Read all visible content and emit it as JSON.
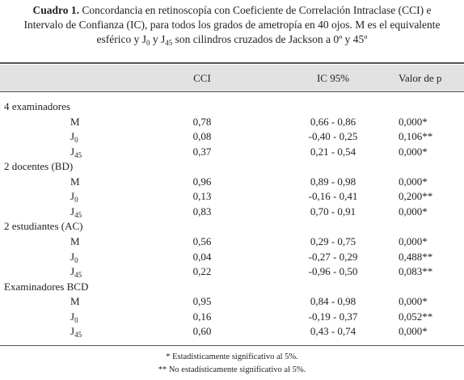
{
  "caption": {
    "label": "Cuadro 1.",
    "line_1": " Concordancia en retinoscopía con Coeficiente de Correlación Intraclase (CCI) e",
    "line_2": "Intervalo de Confianza (IC), para todos los grados de ametropía en 40 ojos. M es el equivalente",
    "line_3a": "esférico y J",
    "sub_1": "0",
    "line_3b": " y J",
    "sub_2": "45",
    "line_3c": " son cilindros cruzados de Jackson a 0º y 45º"
  },
  "table": {
    "header": [
      "CCI",
      "IC 95%",
      "Valor de p"
    ],
    "groups": [
      {
        "name": "4 examinadores",
        "rows": [
          {
            "label": "M",
            "cells": [
              "0,78",
              "0,66 - 0,86",
              "0,000*"
            ]
          },
          {
            "label": "J",
            "sub": "0",
            "cells": [
              "0,08",
              "-0,40 - 0,25",
              "0,106**"
            ]
          },
          {
            "label": "J",
            "sub": "45",
            "cells": [
              "0,37",
              "0,21 - 0,54",
              "0,000*"
            ]
          }
        ]
      },
      {
        "name": "2 docentes (BD)",
        "rows": [
          {
            "label": "M",
            "cells": [
              "0,96",
              "0,89 - 0,98",
              "0,000*"
            ]
          },
          {
            "label": "J",
            "sub": "0",
            "cells": [
              "0,13",
              "-0,16 - 0,41",
              "0,200**"
            ]
          },
          {
            "label": "J",
            "sub": "45",
            "cells": [
              "0,83",
              "0,70 - 0,91",
              "0,000*"
            ]
          }
        ]
      },
      {
        "name": "2 estudiantes (AC)",
        "rows": [
          {
            "label": "M",
            "cells": [
              "0,56",
              "0,29 - 0,75",
              "0,000*"
            ]
          },
          {
            "label": "J",
            "sub": "0",
            "cells": [
              "0,04",
              "-0,27 - 0,29",
              "0,488**"
            ]
          },
          {
            "label": "J",
            "sub": "45",
            "cells": [
              "0,22",
              "-0,96 - 0,50",
              "0,083**"
            ]
          }
        ]
      },
      {
        "name": "Examinadores BCD",
        "rows": [
          {
            "label": "M",
            "cells": [
              "0,95",
              "0,84 - 0,98",
              "0,000*"
            ]
          },
          {
            "label": "J",
            "sub": "0",
            "cells": [
              "0,16",
              "-0,19 - 0,37",
              "0,052**"
            ]
          },
          {
            "label": "J",
            "sub": "45",
            "cells": [
              "0,60",
              "0,43 - 0,74",
              "0,000*"
            ]
          }
        ]
      }
    ]
  },
  "footnotes": [
    "* Estadísticamente significativo al 5%.",
    "** No estadísticamente significativo al 5%."
  ]
}
